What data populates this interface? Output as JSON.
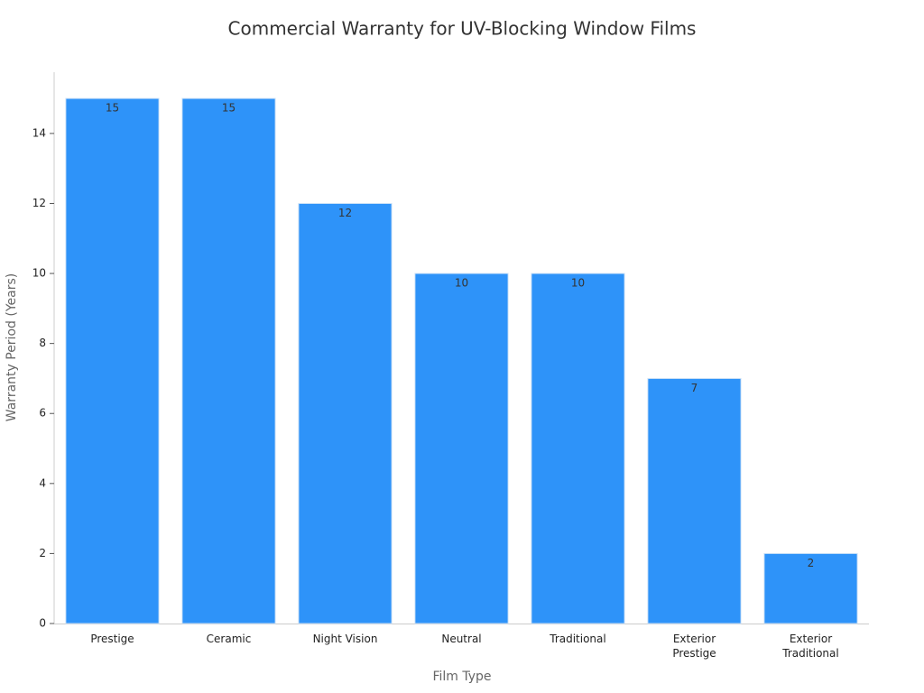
{
  "chart_data": {
    "type": "bar",
    "title": "Commercial Warranty for UV-Blocking Window Films",
    "x_label": "Film Type",
    "y_label": "Warranty Period (Years)",
    "categories": [
      "Prestige",
      "Ceramic",
      "Night Vision",
      "Neutral",
      "Traditional",
      "Exterior Prestige",
      "Exterior Traditional"
    ],
    "values": [
      15,
      15,
      12,
      10,
      10,
      7,
      2
    ],
    "color": "#2e93f9",
    "ylim": [
      0,
      15.75
    ],
    "yticks": [
      0,
      2,
      4,
      6,
      8,
      10,
      12,
      14
    ],
    "grid": false
  }
}
